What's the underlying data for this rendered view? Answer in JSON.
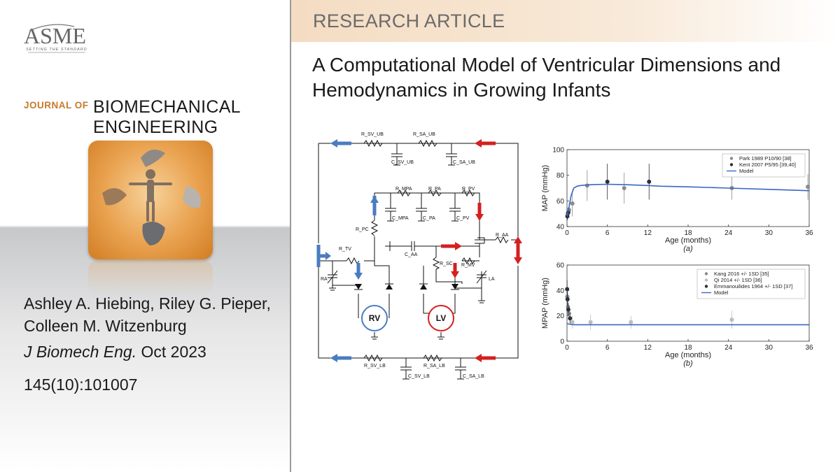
{
  "banner": {
    "label": "RESEARCH ARTICLE"
  },
  "article": {
    "title": "A Computational Model of Ventricular Dimensions and Hemodynamics in Growing Infants"
  },
  "publisher": {
    "name": "ASME",
    "tagline": "SETTING THE STANDARD"
  },
  "journal": {
    "prefix": "JOURNAL OF",
    "name_line1": "BIOMECHANICAL",
    "name_line2": "ENGINEERING"
  },
  "authors": "Ashley A. Hiebing, Riley G. Pieper, Colleen M. Witzenburg",
  "citation": {
    "journal_abbrev": "J Biomech Eng.",
    "date": "Oct 2023",
    "volume": "145(10):101007"
  },
  "circuit": {
    "labels": {
      "r_sv_ub": "R_SV_UB",
      "r_sa_ub": "R_SA_UB",
      "c_sv_ub": "C_SV_UB",
      "c_sa_ub": "C_SA_UB",
      "r_mpa": "R_MPA",
      "r_pa": "R_PA",
      "r_pv": "R_PV",
      "c_mpa": "C_MPA",
      "c_pa": "C_PA",
      "c_pv": "C_PV",
      "r_pc": "R_PC",
      "r_aa": "R_AA",
      "c_aa": "C_AA",
      "r_tv": "R_TV",
      "r_sc": "R_SC",
      "r_mv": "R_MV",
      "ra": "RA",
      "la": "LA",
      "rv": "RV",
      "lv": "LV",
      "r_sv_lb": "R_SV_LB",
      "r_sa_lb": "R_SA_LB",
      "c_sv_lb": "C_SV_LB",
      "c_sa_lb": "C_SA_LB"
    },
    "colors": {
      "venous": "#4a7cc0",
      "arterial": "#d42020",
      "rv_ring": "#4a7cc0",
      "lv_ring": "#d42020"
    }
  },
  "chart_data": [
    {
      "type": "scatter",
      "panel_label": "(a)",
      "xlabel": "Age (months)",
      "ylabel": "MAP (mmHg)",
      "xlim": [
        0,
        36
      ],
      "ylim": [
        40,
        100
      ],
      "x_ticks": [
        0,
        6,
        12,
        18,
        24,
        30,
        36
      ],
      "y_ticks": [
        40,
        60,
        80,
        100
      ],
      "legend": "top-right",
      "grid": false,
      "series": [
        {
          "name": "Park 1989 P10/90 [38]",
          "color": "#8a8a8a",
          "points": [
            {
              "x": 0.1,
              "y": 50,
              "err": 4
            },
            {
              "x": 0.3,
              "y": 53,
              "err": 5
            },
            {
              "x": 0.8,
              "y": 58,
              "err": 10
            },
            {
              "x": 3,
              "y": 72,
              "err": 12
            },
            {
              "x": 8.5,
              "y": 70,
              "err": 12
            },
            {
              "x": 24.5,
              "y": 70,
              "err": 9
            },
            {
              "x": 35.8,
              "y": 71,
              "err": 10
            }
          ]
        },
        {
          "name": "Kent 2007 P5/95 [39,40]",
          "color": "#2b2f3e",
          "points": [
            {
              "x": 0.05,
              "y": 48,
              "err": 3
            },
            {
              "x": 0.2,
              "y": 51,
              "err": 4
            },
            {
              "x": 6,
              "y": 75,
              "err": 14
            },
            {
              "x": 12.2,
              "y": 75,
              "err": 14
            }
          ]
        },
        {
          "name": "Model",
          "color": "#3a66c4",
          "line": true,
          "x": [
            0,
            0.3,
            0.6,
            1,
            1.5,
            2,
            3,
            4,
            6,
            8,
            10,
            12,
            14,
            18,
            24,
            30,
            36
          ],
          "y": [
            48,
            55,
            64,
            70,
            71.5,
            72,
            72.5,
            72.8,
            73,
            72.8,
            72.4,
            72,
            71.5,
            71,
            70,
            69,
            68
          ]
        }
      ]
    },
    {
      "type": "scatter",
      "panel_label": "(b)",
      "xlabel": "Age (months)",
      "ylabel": "MPAP (mmHg)",
      "xlim": [
        0,
        36
      ],
      "ylim": [
        0,
        60
      ],
      "x_ticks": [
        0,
        6,
        12,
        18,
        24,
        30,
        36
      ],
      "y_ticks": [
        0,
        20,
        40,
        60
      ],
      "legend": "top-right",
      "grid": false,
      "series": [
        {
          "name": "Kang 2016 +/- 1SD [35]",
          "color": "#8a8a8a",
          "points": [
            {
              "x": 0.05,
              "y": 35,
              "err": 6
            },
            {
              "x": 0.15,
              "y": 27,
              "err": 6
            },
            {
              "x": 0.3,
              "y": 22,
              "err": 5
            }
          ]
        },
        {
          "name": "Qi 2014 +/- 1SD [36]",
          "color": "#bdbdbd",
          "points": [
            {
              "x": 0.8,
              "y": 15,
              "err": 5
            },
            {
              "x": 3.5,
              "y": 15,
              "err": 6
            },
            {
              "x": 9.5,
              "y": 15,
              "err": 5
            },
            {
              "x": 24.5,
              "y": 17,
              "err": 7
            }
          ]
        },
        {
          "name": "Emmanouilides 1964 +/- 1SD [37]",
          "color": "#2b2f3e",
          "points": [
            {
              "x": 0.02,
              "y": 41,
              "err": 7
            },
            {
              "x": 0.08,
              "y": 33,
              "err": 6
            },
            {
              "x": 0.2,
              "y": 25,
              "err": 5
            },
            {
              "x": 0.45,
              "y": 18,
              "err": 4
            }
          ]
        },
        {
          "name": "Model",
          "color": "#3a66c4",
          "line": true,
          "x": [
            0,
            0.3,
            0.6,
            1,
            2,
            4,
            8,
            12,
            18,
            24,
            30,
            36
          ],
          "y": [
            14,
            13.5,
            13.2,
            13,
            13,
            13,
            13,
            13,
            13,
            13,
            13,
            13
          ]
        }
      ]
    }
  ]
}
